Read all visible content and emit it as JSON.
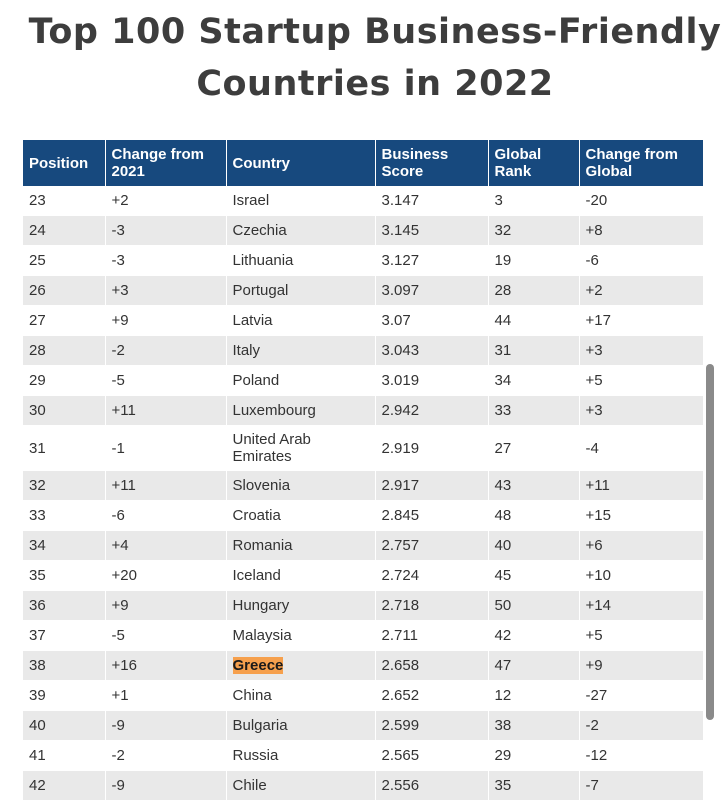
{
  "title_line1": "Top 100 Startup Business-Friendly",
  "title_line2": "Countries in 2022",
  "headers": [
    "Position",
    "Change from 2021",
    "Country",
    "Business Score",
    "Global Rank",
    "Change from Global"
  ],
  "rows": [
    [
      "23",
      "+2",
      "Israel",
      "3.147",
      "3",
      "-20"
    ],
    [
      "24",
      "-3",
      "Czechia",
      "3.145",
      "32",
      "+8"
    ],
    [
      "25",
      "-3",
      "Lithuania",
      "3.127",
      "19",
      "-6"
    ],
    [
      "26",
      "+3",
      "Portugal",
      "3.097",
      "28",
      "+2"
    ],
    [
      "27",
      "+9",
      "Latvia",
      "3.07",
      "44",
      "+17"
    ],
    [
      "28",
      "-2",
      "Italy",
      "3.043",
      "31",
      "+3"
    ],
    [
      "29",
      "-5",
      "Poland",
      "3.019",
      "34",
      "+5"
    ],
    [
      "30",
      "+11",
      "Luxembourg",
      "2.942",
      "33",
      "+3"
    ],
    [
      "31",
      "-1",
      "United Arab Emirates",
      "2.919",
      "27",
      "-4"
    ],
    [
      "32",
      "+11",
      "Slovenia",
      "2.917",
      "43",
      "+11"
    ],
    [
      "33",
      "-6",
      "Croatia",
      "2.845",
      "48",
      "+15"
    ],
    [
      "34",
      "+4",
      "Romania",
      "2.757",
      "40",
      "+6"
    ],
    [
      "35",
      "+20",
      "Iceland",
      "2.724",
      "45",
      "+10"
    ],
    [
      "36",
      "+9",
      "Hungary",
      "2.718",
      "50",
      "+14"
    ],
    [
      "37",
      "-5",
      "Malaysia",
      "2.711",
      "42",
      "+5"
    ],
    [
      "38",
      "+16",
      "Greece",
      "2.658",
      "47",
      "+9"
    ],
    [
      "39",
      "+1",
      "China",
      "2.652",
      "12",
      "-27"
    ],
    [
      "40",
      "-9",
      "Bulgaria",
      "2.599",
      "38",
      "-2"
    ],
    [
      "41",
      "-2",
      "Russia",
      "2.565",
      "29",
      "-12"
    ],
    [
      "42",
      "-9",
      "Chile",
      "2.556",
      "35",
      "-7"
    ]
  ],
  "highlighted_country": "Greece",
  "colors": {
    "header_bg": "#17497e",
    "highlight": "#f6a04d",
    "stripe": "#e9e9e9"
  }
}
